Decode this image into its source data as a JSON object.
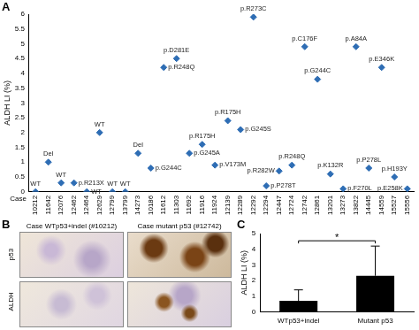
{
  "chart_data": [
    {
      "panel_label": "A",
      "type": "scatter",
      "x_label": "Case",
      "y_label": "ALDH LI (%)",
      "categories": [
        "10212",
        "11642",
        "12076",
        "12462",
        "12464",
        "12629",
        "12799",
        "13799",
        "14273",
        "10186",
        "11612",
        "11303",
        "11692",
        "11916",
        "11924",
        "12139",
        "12289",
        "12292",
        "12294",
        "12447",
        "12724",
        "12742",
        "12861",
        "13201",
        "13273",
        "13822",
        "14445",
        "14559",
        "15527",
        "15556"
      ],
      "values": [
        0.0,
        1.0,
        0.3,
        0.3,
        0.0,
        2.0,
        0.0,
        0.0,
        1.3,
        0.8,
        4.2,
        4.5,
        1.3,
        1.6,
        0.9,
        2.4,
        2.1,
        5.9,
        0.2,
        0.7,
        0.9,
        4.9,
        3.8,
        0.6,
        0.1,
        4.9,
        0.8,
        4.2,
        0.5,
        0.1
      ],
      "point_labels": [
        "WT",
        "Del",
        "WT",
        "p.R213X",
        "WT",
        "WT",
        "WT",
        "WT",
        "Del",
        "p.G244C",
        "p.R248Q",
        "p.D281E",
        "p.G245A",
        "p.R175H",
        "p.V173M",
        "p.R175H",
        "p.G245S",
        "p.R273C",
        "p.P278T",
        "p.R282W",
        "p.R248Q",
        "p.C176F",
        "p.G244C",
        "p.K132R",
        "p.F270L",
        "p.A84A",
        "p.P278L",
        "p.E346K",
        "p.H193Y",
        "p.E258K"
      ],
      "color": "#2e6db4",
      "marker": "diamond",
      "ylim": [
        0,
        6
      ],
      "yticks": [
        0,
        0.5,
        1,
        1.5,
        2,
        2.5,
        3,
        3.5,
        4,
        4.5,
        5,
        5.5,
        6
      ],
      "grid": false
    },
    {
      "panel_label": "C",
      "type": "bar",
      "y_label": "ALDH LI (%)",
      "categories": [
        "WTp53+indel",
        "Mutant p53"
      ],
      "values": [
        0.7,
        2.3
      ],
      "errors": [
        0.7,
        1.9
      ],
      "color": "#000000",
      "ylim": [
        0,
        5
      ],
      "yticks": [
        0,
        1,
        2,
        3,
        4,
        5
      ],
      "grid": false,
      "significance": {
        "label": "*",
        "categories": [
          "WTp53+indel",
          "Mutant p53"
        ]
      }
    }
  ],
  "panel_b": {
    "panel_label": "B",
    "columns": [
      "Case WTp53+indel (#10212)",
      "Case mutant p53 (#12742)"
    ],
    "rows": [
      "p53",
      "ALDH"
    ]
  }
}
